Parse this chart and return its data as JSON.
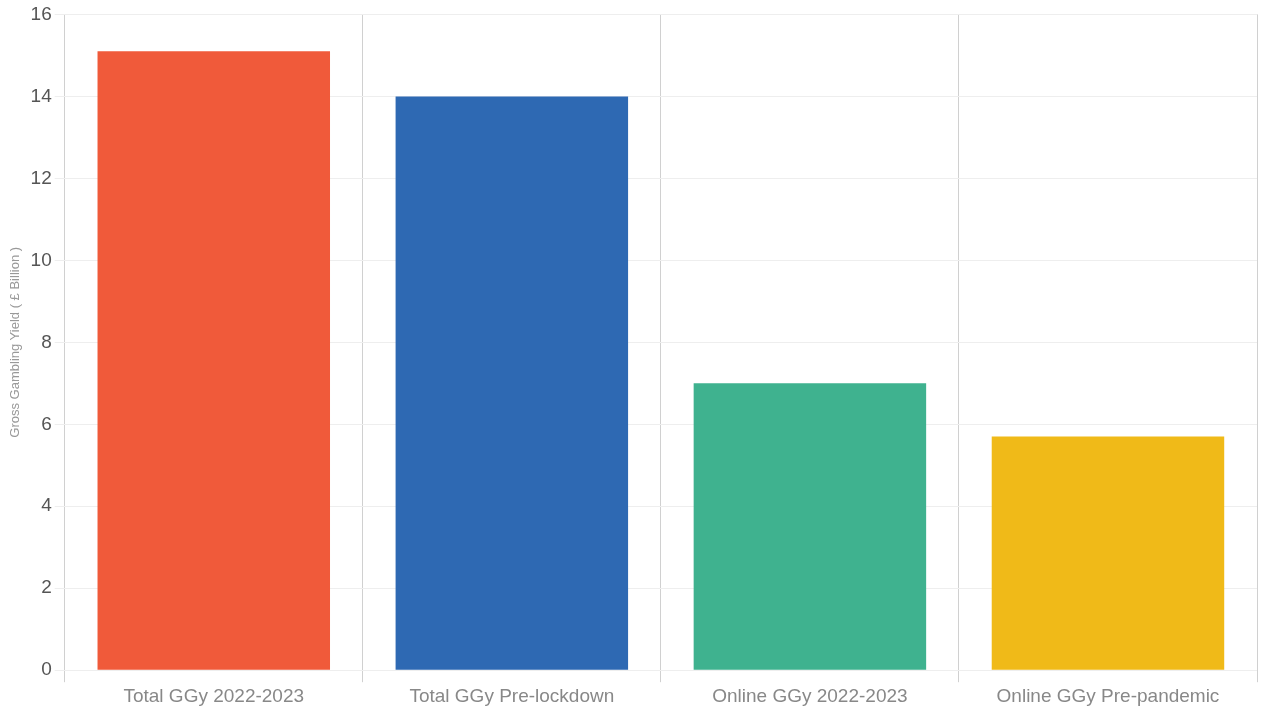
{
  "chart_data": {
    "type": "bar",
    "ylabel": "Gross Gambling Yield ( £ Billion )",
    "categories": [
      "Total GGy 2022-2023",
      "Total GGy Pre-lockdown",
      "Online GGy 2022-2023",
      "Online GGy Pre-pandemic"
    ],
    "values": [
      15.1,
      14.0,
      7.0,
      5.7
    ],
    "colors": [
      "#f05a3a",
      "#2e69b3",
      "#3fb28f",
      "#f0ba18"
    ],
    "ylim": [
      0,
      16
    ],
    "yticks": [
      0,
      2,
      4,
      6,
      8,
      10,
      12,
      14,
      16
    ],
    "grid": true
  }
}
